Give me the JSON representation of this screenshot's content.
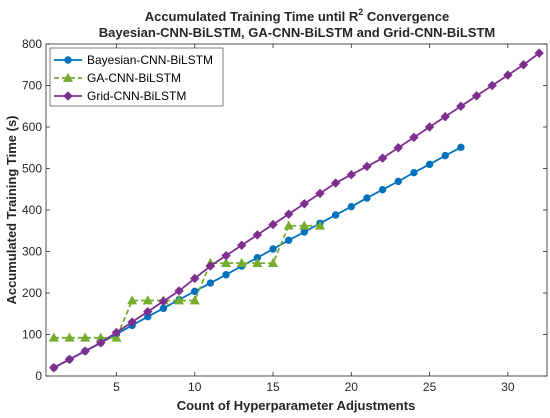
{
  "chart_data": {
    "type": "line",
    "title_line1_main": "Accumulated Training Time until R",
    "title_line1_sup": "2",
    "title_line1_end": " Convergence",
    "title_line2": "Bayesian-CNN-BiLSTM, GA-CNN-BiLSTM and Grid-CNN-BiLSTM",
    "xlabel": "Count of Hyperparameter Adjustments",
    "ylabel": "Accumulated Training Time (s)",
    "xlim": [
      0.5,
      32.5
    ],
    "ylim": [
      0,
      800
    ],
    "xticks": [
      5,
      10,
      15,
      20,
      25,
      30
    ],
    "yticks": [
      0,
      100,
      200,
      300,
      400,
      500,
      600,
      700,
      800
    ],
    "grid": false,
    "legend_position": "top-left",
    "series": [
      {
        "name": "Bayesian-CNN-BiLSTM",
        "color": "#0072BD",
        "marker": "circle",
        "line": "solid",
        "x": [
          1,
          2,
          3,
          4,
          5,
          6,
          7,
          8,
          9,
          10,
          11,
          12,
          13,
          14,
          15,
          16,
          17,
          18,
          19,
          20,
          21,
          22,
          23,
          24,
          25,
          26,
          27
        ],
        "y": [
          20,
          40,
          60,
          80,
          101,
          122,
          143,
          163,
          184,
          204,
          224,
          244,
          265,
          285,
          306,
          327,
          347,
          368,
          388,
          408,
          429,
          449,
          469,
          490,
          510,
          531,
          551
        ]
      },
      {
        "name": "GA-CNN-BiLSTM",
        "color": "#77AC30",
        "marker": "triangle",
        "line": "dashed",
        "x": [
          1,
          2,
          3,
          4,
          5,
          6,
          7,
          8,
          9,
          10,
          11,
          12,
          13,
          14,
          15,
          16,
          17,
          18
        ],
        "y": [
          92,
          92,
          92,
          92,
          92,
          182,
          182,
          182,
          182,
          182,
          272,
          272,
          272,
          272,
          272,
          362,
          362,
          362
        ]
      },
      {
        "name": "Grid-CNN-BiLSTM",
        "color": "#7E2F8E",
        "marker": "diamond",
        "line": "solid",
        "x": [
          1,
          2,
          3,
          4,
          5,
          6,
          7,
          8,
          9,
          10,
          11,
          12,
          13,
          14,
          15,
          16,
          17,
          18,
          19,
          20,
          21,
          22,
          23,
          24,
          25,
          26,
          27,
          28,
          29,
          30,
          31,
          32
        ],
        "y": [
          20,
          40,
          60,
          80,
          105,
          130,
          155,
          180,
          205,
          235,
          265,
          290,
          315,
          340,
          365,
          390,
          415,
          440,
          465,
          485,
          505,
          525,
          550,
          575,
          600,
          625,
          650,
          675,
          700,
          725,
          750,
          778
        ]
      }
    ]
  }
}
